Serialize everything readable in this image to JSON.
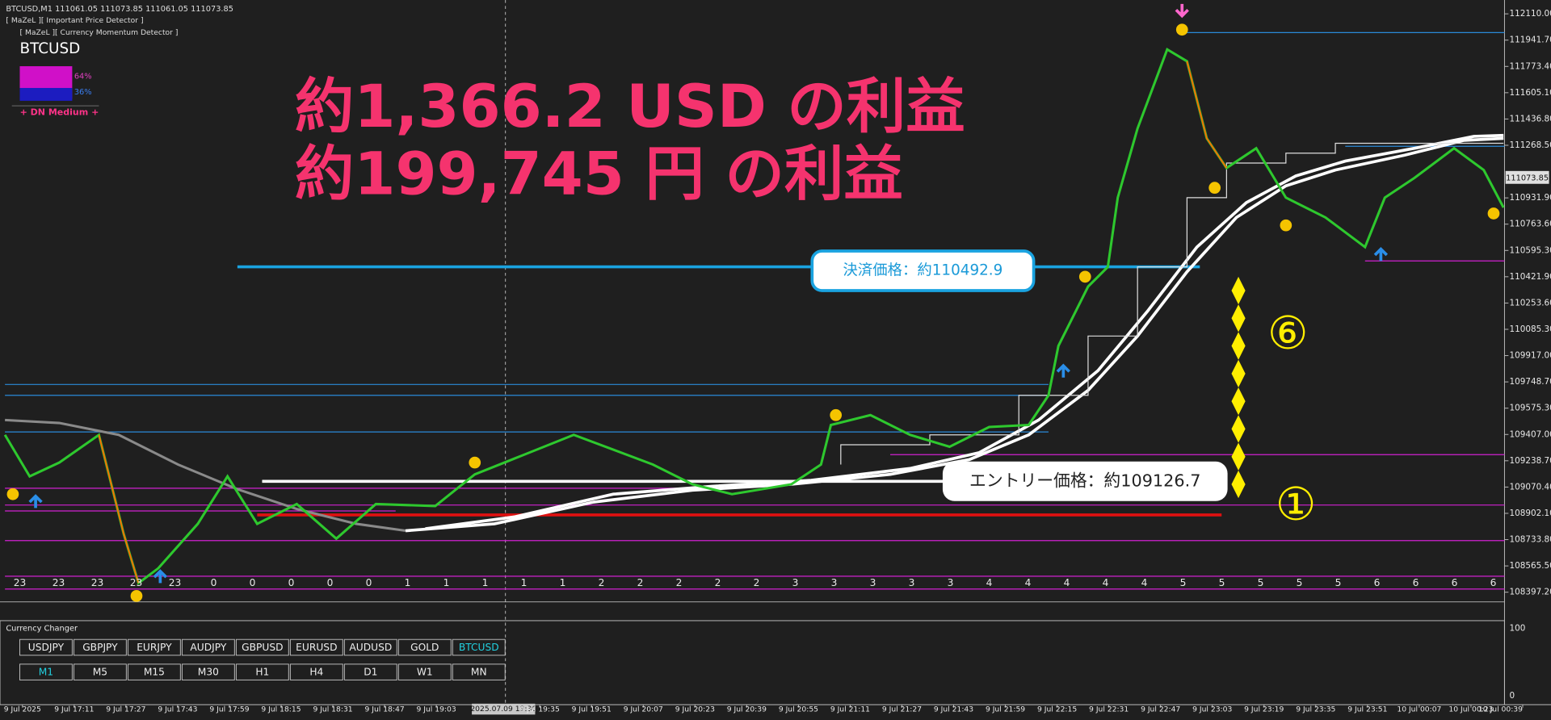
{
  "header": {
    "symbol_info": "BTCUSD,M1  111061.05 111073.85 111061.05 111073.85",
    "indicator_1": "[ MaZeL ][ Important Price Detector ]",
    "indicator_2": "[ MaZeL ][ Currency Momentum Detector ]"
  },
  "panel": {
    "symbol": "BTCUSD",
    "up_pct": "64%",
    "down_pct": "36%",
    "signal": "+ DN Medium +"
  },
  "annotations": {
    "profit_usd": "約1,366.2 USD の利益",
    "profit_jpy": "約199,745 円 の利益",
    "exit_price": "決済価格：約110492.9",
    "entry_price": "エントリー価格：約109126.7",
    "count_top": "⑥",
    "count_bottom": "①"
  },
  "price_axis": [
    "112110.00",
    "111941.70",
    "111773.40",
    "111605.10",
    "111436.80",
    "111268.50",
    "110931.90",
    "110763.60",
    "110595.30",
    "110421.90",
    "110253.60",
    "110085.30",
    "109917.00",
    "109748.70",
    "109575.30",
    "109407.00",
    "109238.70",
    "109070.40",
    "108902.10",
    "108733.80",
    "108565.50",
    "108397.20"
  ],
  "current_price": "111073.85",
  "hour_labels": [
    "23",
    "23",
    "23",
    "23",
    "23",
    "0",
    "0",
    "0",
    "0",
    "0",
    "1",
    "1",
    "1",
    "1",
    "1",
    "2",
    "2",
    "2",
    "2",
    "2",
    "3",
    "3",
    "3",
    "3",
    "3",
    "4",
    "4",
    "4",
    "4",
    "4",
    "5",
    "5",
    "5",
    "5",
    "5",
    "6",
    "6",
    "6",
    "6"
  ],
  "time_axis": [
    "9 Jul 2025",
    "9 Jul 17:11",
    "9 Jul 17:27",
    "9 Jul 17:43",
    "9 Jul 17:59",
    "9 Jul 18:15",
    "9 Jul 18:31",
    "9 Jul 18:47",
    "9 Jul 19:03",
    "9 Jul 19:35",
    "9 Jul 19:51",
    "9 Jul 20:07",
    "9 Jul 20:23",
    "9 Jul 20:39",
    "9 Jul 20:55",
    "9 Jul 21:11",
    "9 Jul 21:27",
    "9 Jul 21:43",
    "9 Jul 21:59",
    "9 Jul 22:15",
    "9 Jul 22:31",
    "9 Jul 22:47",
    "9 Jul 23:03",
    "9 Jul 23:19",
    "9 Jul 23:35",
    "9 Jul 23:51",
    "10 Jul 00:07",
    "10 Jul 00:23",
    "10 Jul 00:39"
  ],
  "crosshair_time": "2025.07.09 19:30",
  "subwindow": {
    "title": "Currency Changer",
    "symbols": [
      "USDJPY",
      "GBPJPY",
      "EURJPY",
      "AUDJPY",
      "GBPUSD",
      "EURUSD",
      "AUDUSD",
      "GOLD",
      "BTCUSD"
    ],
    "active_symbol": "BTCUSD",
    "timeframes": [
      "M1",
      "M5",
      "M15",
      "M30",
      "H1",
      "H4",
      "D1",
      "W1",
      "MN"
    ],
    "active_timeframe": "M1",
    "axis": [
      "100",
      "0"
    ]
  }
}
